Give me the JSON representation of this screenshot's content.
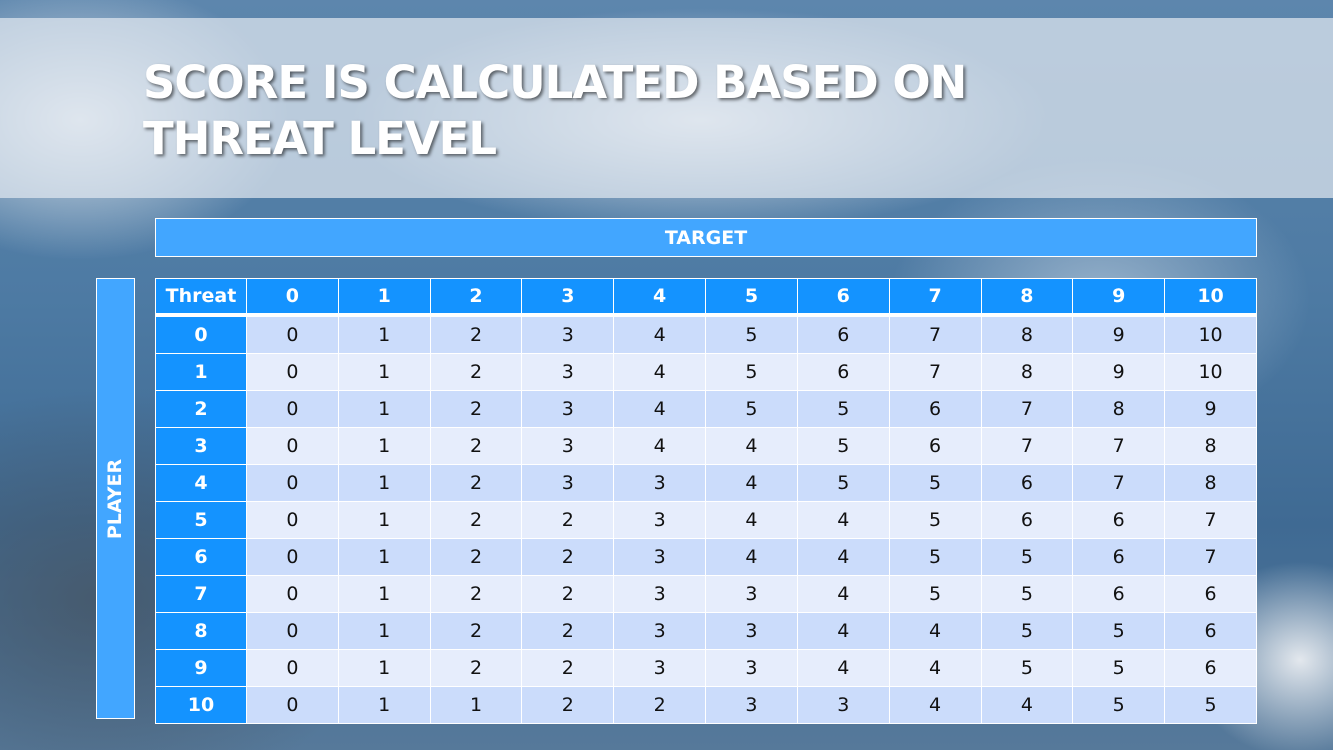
{
  "slide": {
    "title_line1": "SCORE IS CALCULATED BASED ON",
    "title_line2": "THREAT LEVEL",
    "target_label": "TARGET",
    "player_label": "PLAYER"
  },
  "table": {
    "corner_label": "Threat",
    "columns": [
      "0",
      "1",
      "2",
      "3",
      "4",
      "5",
      "6",
      "7",
      "8",
      "9",
      "10"
    ],
    "rows": [
      {
        "label": "0",
        "values": [
          "0",
          "1",
          "2",
          "3",
          "4",
          "5",
          "6",
          "7",
          "8",
          "9",
          "10"
        ]
      },
      {
        "label": "1",
        "values": [
          "0",
          "1",
          "2",
          "3",
          "4",
          "5",
          "6",
          "7",
          "8",
          "9",
          "10"
        ]
      },
      {
        "label": "2",
        "values": [
          "0",
          "1",
          "2",
          "3",
          "4",
          "5",
          "5",
          "6",
          "7",
          "8",
          "9"
        ]
      },
      {
        "label": "3",
        "values": [
          "0",
          "1",
          "2",
          "3",
          "4",
          "4",
          "5",
          "6",
          "7",
          "7",
          "8"
        ]
      },
      {
        "label": "4",
        "values": [
          "0",
          "1",
          "2",
          "3",
          "3",
          "4",
          "5",
          "5",
          "6",
          "7",
          "8"
        ]
      },
      {
        "label": "5",
        "values": [
          "0",
          "1",
          "2",
          "2",
          "3",
          "4",
          "4",
          "5",
          "6",
          "6",
          "7"
        ]
      },
      {
        "label": "6",
        "values": [
          "0",
          "1",
          "2",
          "2",
          "3",
          "4",
          "4",
          "5",
          "5",
          "6",
          "7"
        ]
      },
      {
        "label": "7",
        "values": [
          "0",
          "1",
          "2",
          "2",
          "3",
          "3",
          "4",
          "5",
          "5",
          "6",
          "6"
        ]
      },
      {
        "label": "8",
        "values": [
          "0",
          "1",
          "2",
          "2",
          "3",
          "3",
          "4",
          "4",
          "5",
          "5",
          "6"
        ]
      },
      {
        "label": "9",
        "values": [
          "0",
          "1",
          "2",
          "2",
          "3",
          "3",
          "4",
          "4",
          "5",
          "5",
          "6"
        ]
      },
      {
        "label": "10",
        "values": [
          "0",
          "1",
          "1",
          "2",
          "2",
          "3",
          "3",
          "4",
          "4",
          "5",
          "5"
        ]
      }
    ]
  },
  "colors": {
    "header_blue": "#1493ff",
    "label_blue": "#42a6ff",
    "row_dark": "#cbdcfb",
    "row_light": "#e6edfc"
  }
}
